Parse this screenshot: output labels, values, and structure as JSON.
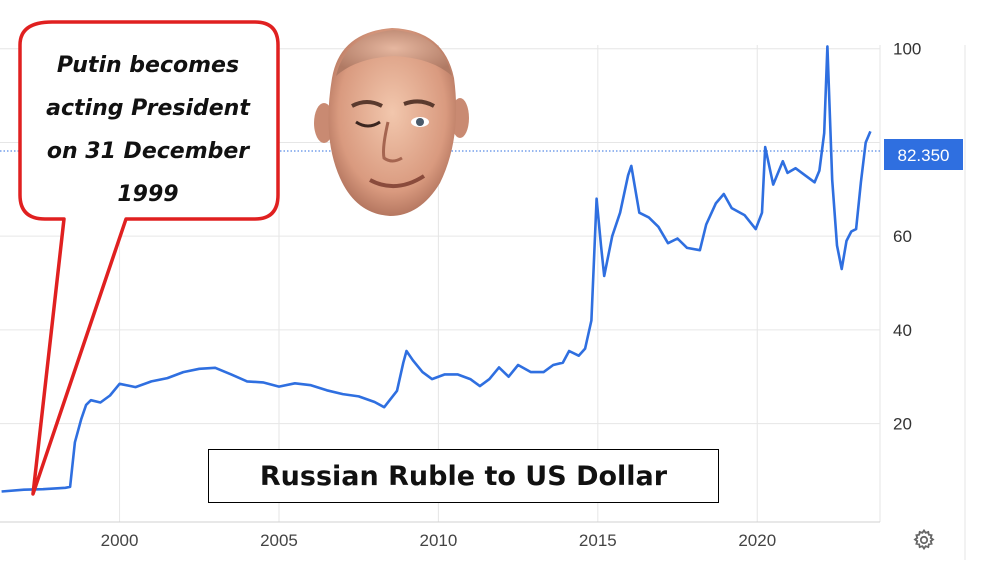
{
  "annotation": {
    "callout_text": "Putin becomes\nacting President\non 31 December\n1999",
    "callout_color": "#e02020"
  },
  "price_tag": {
    "value": "82.350",
    "color": "#2f6fe0"
  },
  "icons": {
    "portrait": "putin-face-photo",
    "settings": "gear-icon"
  },
  "chart_data": {
    "type": "line",
    "title": "Russian Ruble to US Dollar",
    "xlabel": "",
    "ylabel": "",
    "line_color": "#2f6fe0",
    "grid": true,
    "y_axis_position": "right",
    "xlim": [
      1996.25,
      2023.85
    ],
    "ylim": [
      -1,
      104
    ],
    "x_ticks": [
      2000,
      2005,
      2010,
      2015,
      2020
    ],
    "x_tick_labels": [
      "2000",
      "2005",
      "2010",
      "2015",
      "2020"
    ],
    "y_ticks": [
      20,
      40,
      60,
      100
    ],
    "y_tick_labels": [
      "20",
      "40",
      "60",
      "100"
    ],
    "series": [
      {
        "values": [
          [
            1996.3,
            5.5
          ],
          [
            1997.0,
            5.9
          ],
          [
            1997.6,
            6.0
          ],
          [
            1998.3,
            6.3
          ],
          [
            1998.45,
            6.5
          ],
          [
            1998.6,
            16.0
          ],
          [
            1998.8,
            21.0
          ],
          [
            1998.95,
            24.0
          ],
          [
            1999.1,
            25.0
          ],
          [
            1999.4,
            24.5
          ],
          [
            1999.7,
            26.0
          ],
          [
            2000.0,
            28.5
          ],
          [
            2000.5,
            27.8
          ],
          [
            2001.0,
            29.0
          ],
          [
            2001.5,
            29.7
          ],
          [
            2002.0,
            31.0
          ],
          [
            2002.5,
            31.7
          ],
          [
            2003.0,
            31.9
          ],
          [
            2003.5,
            30.5
          ],
          [
            2004.0,
            29.0
          ],
          [
            2004.5,
            28.8
          ],
          [
            2005.0,
            27.9
          ],
          [
            2005.5,
            28.6
          ],
          [
            2006.0,
            28.2
          ],
          [
            2006.5,
            27.1
          ],
          [
            2007.0,
            26.3
          ],
          [
            2007.5,
            25.8
          ],
          [
            2008.0,
            24.6
          ],
          [
            2008.3,
            23.5
          ],
          [
            2008.7,
            27.0
          ],
          [
            2008.9,
            33.0
          ],
          [
            2009.0,
            35.5
          ],
          [
            2009.2,
            33.5
          ],
          [
            2009.5,
            31.0
          ],
          [
            2009.8,
            29.5
          ],
          [
            2010.2,
            30.5
          ],
          [
            2010.6,
            30.5
          ],
          [
            2011.0,
            29.5
          ],
          [
            2011.3,
            28.0
          ],
          [
            2011.6,
            29.5
          ],
          [
            2011.9,
            32.0
          ],
          [
            2012.2,
            30.0
          ],
          [
            2012.5,
            32.5
          ],
          [
            2012.9,
            31.0
          ],
          [
            2013.3,
            31.0
          ],
          [
            2013.6,
            32.5
          ],
          [
            2013.9,
            33.0
          ],
          [
            2014.1,
            35.5
          ],
          [
            2014.4,
            34.5
          ],
          [
            2014.6,
            36.0
          ],
          [
            2014.8,
            42.0
          ],
          [
            2014.96,
            68.0
          ],
          [
            2015.1,
            58.0
          ],
          [
            2015.2,
            51.5
          ],
          [
            2015.45,
            60.0
          ],
          [
            2015.7,
            65.0
          ],
          [
            2015.95,
            73.0
          ],
          [
            2016.05,
            75.0
          ],
          [
            2016.3,
            65.0
          ],
          [
            2016.6,
            64.0
          ],
          [
            2016.9,
            62.0
          ],
          [
            2017.2,
            58.5
          ],
          [
            2017.5,
            59.5
          ],
          [
            2017.8,
            57.5
          ],
          [
            2018.2,
            57.0
          ],
          [
            2018.4,
            62.5
          ],
          [
            2018.7,
            67.0
          ],
          [
            2018.95,
            69.0
          ],
          [
            2019.2,
            66.0
          ],
          [
            2019.6,
            64.5
          ],
          [
            2019.95,
            61.5
          ],
          [
            2020.15,
            65.0
          ],
          [
            2020.25,
            79.0
          ],
          [
            2020.5,
            71.0
          ],
          [
            2020.8,
            76.0
          ],
          [
            2020.95,
            73.5
          ],
          [
            2021.2,
            74.5
          ],
          [
            2021.5,
            73.0
          ],
          [
            2021.8,
            71.5
          ],
          [
            2021.95,
            74.0
          ],
          [
            2022.1,
            82.0
          ],
          [
            2022.2,
            100.5
          ],
          [
            2022.35,
            72.0
          ],
          [
            2022.5,
            58.0
          ],
          [
            2022.65,
            53.0
          ],
          [
            2022.8,
            59.0
          ],
          [
            2022.95,
            61.0
          ],
          [
            2023.1,
            61.5
          ],
          [
            2023.25,
            71.5
          ],
          [
            2023.4,
            80.0
          ],
          [
            2023.55,
            82.35
          ]
        ]
      }
    ]
  }
}
